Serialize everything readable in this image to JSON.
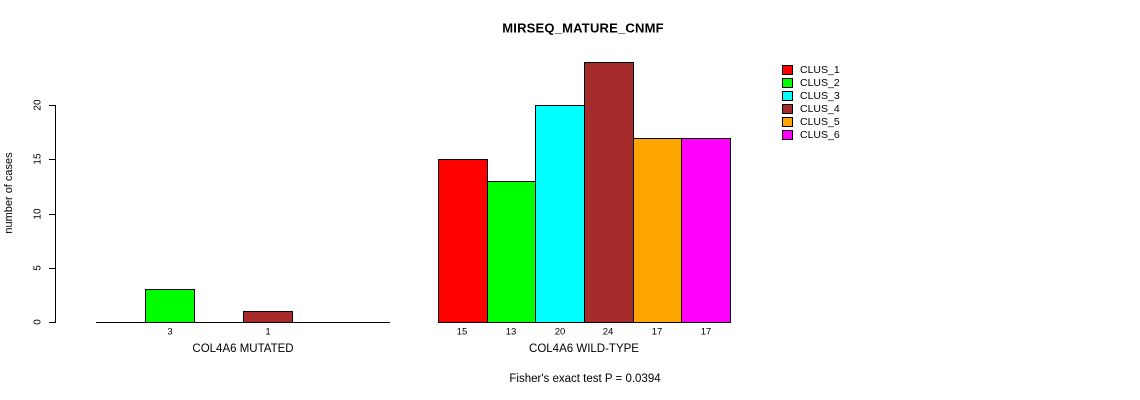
{
  "chart_data": {
    "type": "bar",
    "title": "MIRSEQ_MATURE_CNMF",
    "ylabel": "number of cases",
    "xlabel": "",
    "yticks": [
      0,
      5,
      10,
      15,
      20
    ],
    "ylim": [
      0,
      24
    ],
    "grid": false,
    "legend_position": "top-right",
    "categories": [
      "CLUS_1",
      "CLUS_2",
      "CLUS_3",
      "CLUS_4",
      "CLUS_5",
      "CLUS_6"
    ],
    "legend": [
      {
        "label": "CLUS_1",
        "color": "#ff0000"
      },
      {
        "label": "CLUS_2",
        "color": "#00ff00"
      },
      {
        "label": "CLUS_3",
        "color": "#00ffff"
      },
      {
        "label": "CLUS_4",
        "color": "#a52a2a"
      },
      {
        "label": "CLUS_5",
        "color": "#ffa500"
      },
      {
        "label": "CLUS_6",
        "color": "#ff00ff"
      }
    ],
    "groups": [
      {
        "label": "COL4A6 MUTATED",
        "values": [
          0,
          3,
          0,
          1,
          0,
          0
        ]
      },
      {
        "label": "COL4A6 WILD-TYPE",
        "values": [
          15,
          13,
          20,
          24,
          17,
          17
        ]
      }
    ],
    "annotation": "Fisher's exact test P = 0.0394",
    "colors": {
      "background": "#ffffff",
      "axis": "#000000",
      "text": "#000000"
    }
  }
}
